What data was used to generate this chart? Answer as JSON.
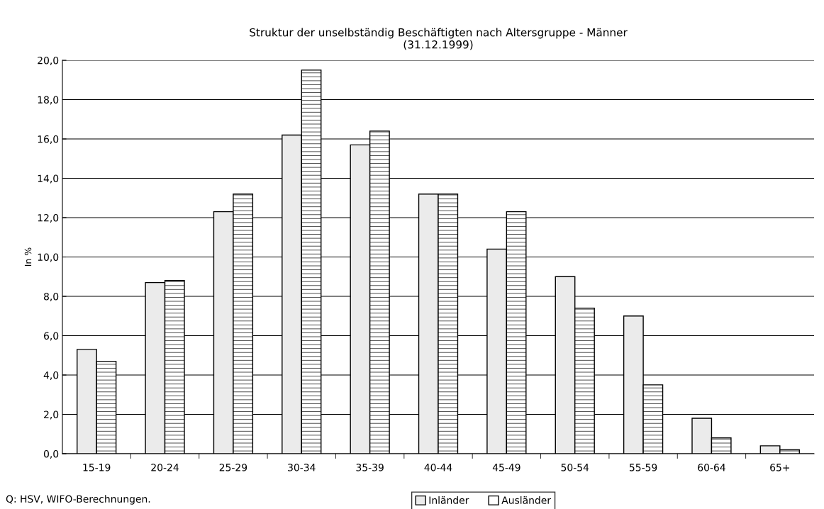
{
  "chart_data": {
    "type": "bar",
    "title": "Struktur der unselbständig Beschäftigten nach Altersgruppe - Männer\n(31.12.1999)",
    "ylabel": "In %",
    "categories": [
      "15-19",
      "20-24",
      "25-29",
      "30-34",
      "35-39",
      "40-44",
      "45-49",
      "50-54",
      "55-59",
      "60-64",
      "65+"
    ],
    "series": [
      {
        "name": "Inländer",
        "color": "#ebebeb",
        "values": [
          5.3,
          8.7,
          12.3,
          16.2,
          15.7,
          13.2,
          10.4,
          9.0,
          7.0,
          1.8,
          0.4
        ]
      },
      {
        "name": "Ausländer",
        "color": "#ffffff",
        "values": [
          4.7,
          8.8,
          13.2,
          19.5,
          16.4,
          13.2,
          12.3,
          7.4,
          3.5,
          0.8,
          0.2
        ]
      }
    ],
    "ylim": [
      0,
      20
    ],
    "yticks": [
      {
        "value": 0,
        "label": "0,0"
      },
      {
        "value": 2,
        "label": "2,0"
      },
      {
        "value": 4,
        "label": "4,0"
      },
      {
        "value": 6,
        "label": "6,0"
      },
      {
        "value": 8,
        "label": "8,0"
      },
      {
        "value": 10,
        "label": "10,0"
      },
      {
        "value": 12,
        "label": "12,0"
      },
      {
        "value": 14,
        "label": "14,0"
      },
      {
        "value": 16,
        "label": "16,0"
      },
      {
        "value": 18,
        "label": "18,0"
      },
      {
        "value": 20,
        "label": "20,0"
      }
    ],
    "grid": "y",
    "legend": "bottom",
    "annotations": [
      "Q: HSV, WIFO-Berechnungen."
    ]
  }
}
